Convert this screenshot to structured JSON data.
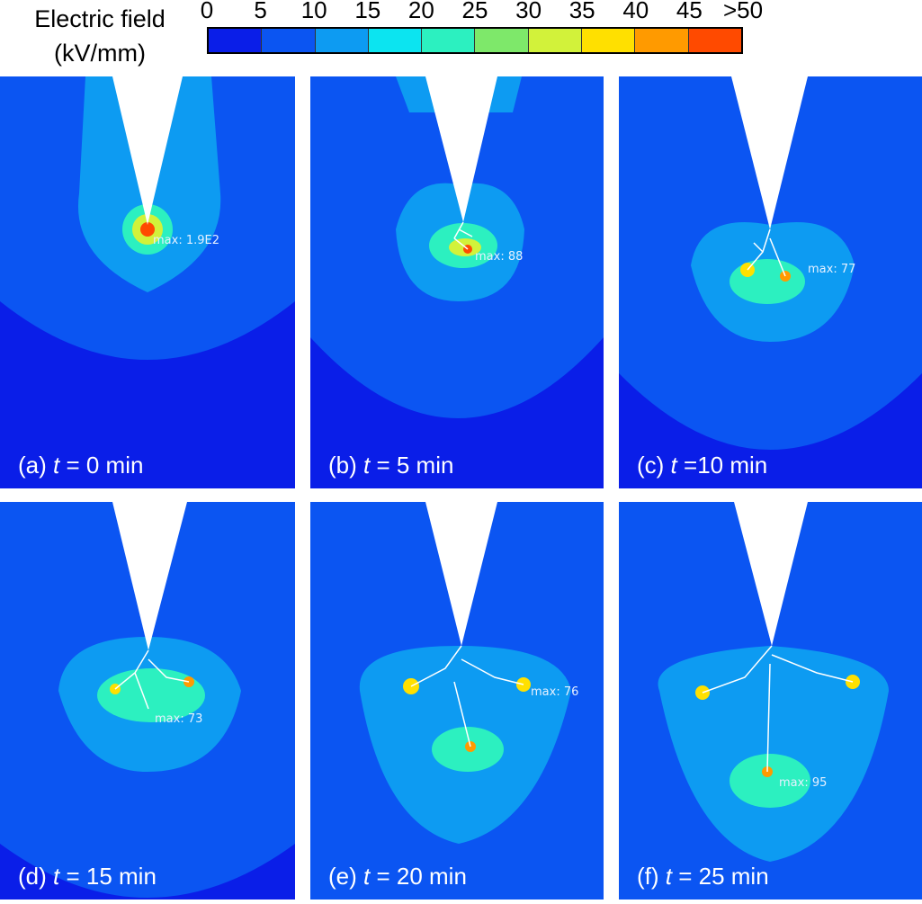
{
  "colorbar": {
    "title_line1": "Electric field",
    "title_line2": "(kV/mm)",
    "ticks": [
      "0",
      "5",
      "10",
      "15",
      "20",
      "25",
      "30",
      "35",
      "40",
      "45",
      ">50"
    ],
    "colors": [
      "#0a1ee8",
      "#0b55f2",
      "#0d9bf2",
      "#0ce4f0",
      "#2cf0c0",
      "#7ee86a",
      "#d2f23a",
      "#ffe000",
      "#ff9a00",
      "#ff4a00"
    ]
  },
  "panels": [
    {
      "label": "(a) ",
      "t": "t",
      "rest": " = 0 min",
      "max": "max: 1.9E2"
    },
    {
      "label": "(b) ",
      "t": "t",
      "rest": " = 5 min",
      "max": "max: 88"
    },
    {
      "label": "(c) ",
      "t": "t",
      "rest": " =10 min",
      "max": "max: 77"
    },
    {
      "label": "(d) ",
      "t": "t",
      "rest": " = 15 min",
      "max": "max: 73"
    },
    {
      "label": "(e) ",
      "t": "t",
      "rest": " = 20 min",
      "max": "max: 76"
    },
    {
      "label": "(f) ",
      "t": "t",
      "rest": " = 25 min",
      "max": "max: 95"
    }
  ]
}
